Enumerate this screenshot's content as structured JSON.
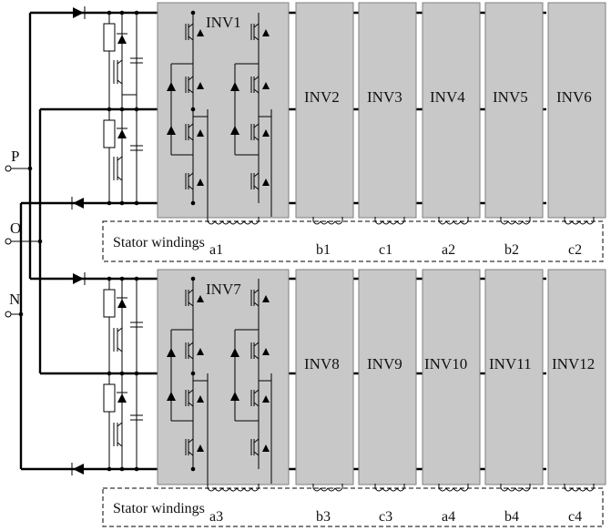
{
  "terminals": {
    "p": "P",
    "o": "O",
    "n": "N"
  },
  "upper": {
    "inverters": [
      "INV1",
      "INV2",
      "INV3",
      "INV4",
      "INV5",
      "INV6"
    ],
    "stator_label": "Stator windings",
    "windings": [
      "a1",
      "b1",
      "c1",
      "a2",
      "b2",
      "c2"
    ]
  },
  "lower": {
    "inverters": [
      "INV7",
      "INV8",
      "INV9",
      "INV10",
      "INV11",
      "INV12"
    ],
    "stator_label": "Stator windings",
    "windings": [
      "a3",
      "b3",
      "c3",
      "a4",
      "b4",
      "c4"
    ]
  },
  "colors": {
    "inverter_fill": "#c8c8c8",
    "inverter_border": "#7f7f7f",
    "wire": "#000000"
  }
}
